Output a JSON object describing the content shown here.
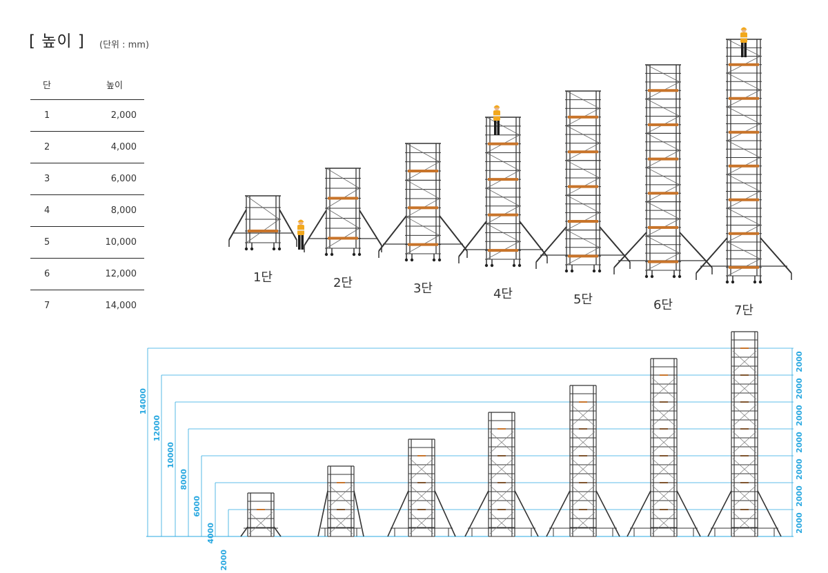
{
  "header": {
    "title": "[ 높이 ]",
    "unit": "(단위 : mm)"
  },
  "table": {
    "col_stage": "단",
    "col_height": "높이",
    "rows": [
      {
        "stage": "1",
        "height": "2,000"
      },
      {
        "stage": "2",
        "height": "4,000"
      },
      {
        "stage": "3",
        "height": "6,000"
      },
      {
        "stage": "4",
        "height": "8,000"
      },
      {
        "stage": "5",
        "height": "10,000"
      },
      {
        "stage": "6",
        "height": "12,000"
      },
      {
        "stage": "7",
        "height": "14,000"
      }
    ]
  },
  "towers": [
    "1단",
    "2단",
    "3단",
    "4단",
    "5단",
    "6단",
    "7단"
  ],
  "dimension": {
    "left_labels": [
      "14000",
      "12000",
      "10000",
      "8000",
      "6000",
      "4000",
      "2000"
    ],
    "right_labels": [
      "2000",
      "2000",
      "2000",
      "2000",
      "2000",
      "2000",
      "2000"
    ]
  },
  "colors": {
    "dimension": "#29a8e0",
    "frame": "#333333",
    "deck": "#c8742a",
    "worker_vest": "#f2a81d"
  }
}
